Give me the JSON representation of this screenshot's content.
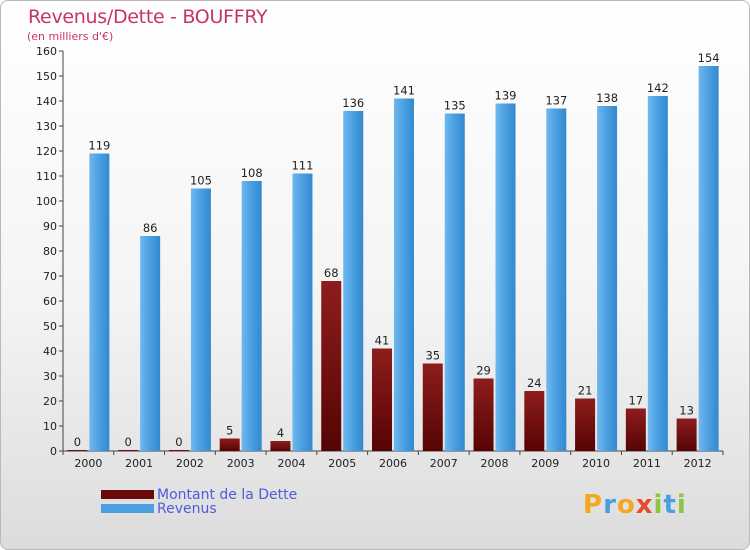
{
  "chart_data": {
    "type": "bar",
    "title": "Revenus/Dette - BOUFFRY",
    "subtitle": "(en milliers d'€)",
    "categories": [
      "2000",
      "2001",
      "2002",
      "2003",
      "2004",
      "2005",
      "2006",
      "2007",
      "2008",
      "2009",
      "2010",
      "2011",
      "2012"
    ],
    "series": [
      {
        "name": "Montant de la Dette",
        "color": "#7a0c0c",
        "values": [
          0,
          0,
          0,
          5,
          4,
          68,
          41,
          35,
          29,
          24,
          21,
          17,
          13
        ]
      },
      {
        "name": "Revenus",
        "color": "#4a9fe0",
        "values": [
          119,
          86,
          105,
          108,
          111,
          136,
          141,
          135,
          139,
          137,
          138,
          142,
          154
        ]
      }
    ],
    "ylim": [
      0,
      160
    ],
    "yticks": [
      0,
      10,
      20,
      30,
      40,
      50,
      60,
      70,
      80,
      90,
      100,
      110,
      120,
      130,
      140,
      150,
      160
    ],
    "grid": false,
    "legend_position": "bottom-left"
  },
  "legend": {
    "items": [
      {
        "label": "Montant de la Dette",
        "color": "#6b0a0a"
      },
      {
        "label": "Revenus",
        "color": "#4a9fe0"
      }
    ]
  },
  "brand": {
    "logo_text": "Proxiti",
    "colors": [
      "#f5a623",
      "#4a9fe0",
      "#e8482c",
      "#8cc63f"
    ]
  }
}
